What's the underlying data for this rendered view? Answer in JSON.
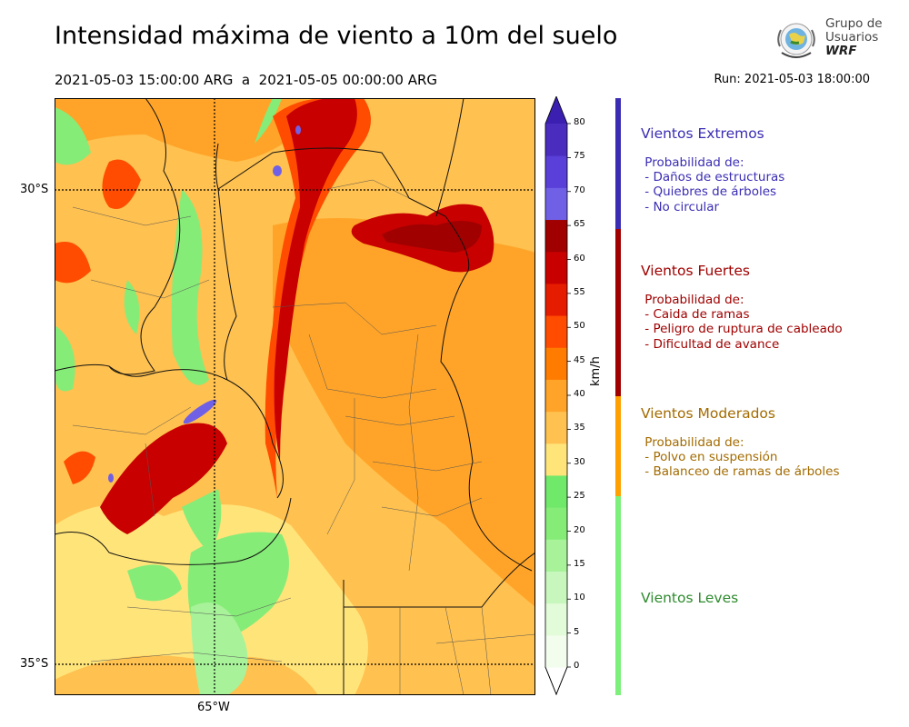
{
  "title": "Intensidad máxima de viento a 10m del suelo",
  "period": "2021-05-03 15:00:00 ARG  a  2021-05-05 00:00:00 ARG",
  "run": "Run: 2021-05-03 18:00:00",
  "logo": {
    "text_line1": "Grupo de",
    "text_line2": "Usuarios",
    "text_line3": "WRF"
  },
  "map": {
    "lat_labels": [
      "30°S",
      "35°S"
    ],
    "lon_labels": [
      "65°W"
    ]
  },
  "colorbar": {
    "unit": "km/h",
    "ticks": [
      "0",
      "5",
      "10",
      "15",
      "20",
      "25",
      "30",
      "35",
      "40",
      "45",
      "50",
      "55",
      "60",
      "65",
      "70",
      "75",
      "80"
    ],
    "colors": [
      "#f2fdee",
      "#e2fbd8",
      "#c8f7bd",
      "#a8f29a",
      "#86ec78",
      "#70e86a",
      "#ffe47a",
      "#ffc14f",
      "#ffa428",
      "#ff7c00",
      "#ff4c00",
      "#e61c00",
      "#c80000",
      "#a00000",
      "#7060e6",
      "#5a40d8",
      "#4a2cbf"
    ],
    "extend_high": "#3a1fb0",
    "extend_low": "#ffffff"
  },
  "legend": [
    {
      "title": "Vientos Extremos",
      "color": "#3a2db3",
      "body": " Probabilidad de:\n - Daños de estructuras\n - Quiebres de árboles\n - No circular"
    },
    {
      "title": "Vientos Fuertes",
      "color": "#a00000",
      "body": " Probabilidad de:\n - Caida de ramas\n - Peligro de ruptura de cableado\n - Dificultad de avance"
    },
    {
      "title": "Vientos Moderados",
      "color": "#a36b00",
      "body": " Probabilidad de:\n - Polvo en suspensión\n - Balanceo de ramas de árboles"
    },
    {
      "title": "Vientos Leves",
      "color": "#2e8b2e",
      "body": ""
    }
  ],
  "legend_bar_colors": [
    "#3a2db3",
    "#a00000",
    "#ffa000",
    "#7cf07a"
  ]
}
